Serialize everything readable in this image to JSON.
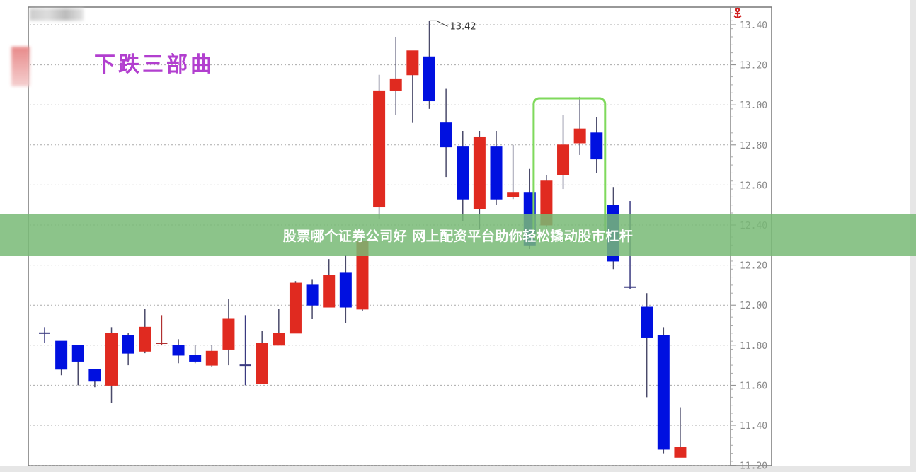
{
  "chart_data": {
    "type": "candlestick",
    "title": "下跌三部曲",
    "ylim": [
      11.21,
      13.48
    ],
    "yticks": [
      "11.20",
      "11.40",
      "11.60",
      "11.80",
      "12.00",
      "12.20",
      "12.40",
      "12.60",
      "12.80",
      "13.00",
      "13.20",
      "13.40"
    ],
    "grid": true,
    "annotation": {
      "label": "13.42",
      "value": 13.42,
      "candle_index": 23
    },
    "highlight": {
      "from_index": 30,
      "to_index": 33,
      "color": "#7fd95c"
    },
    "colors": {
      "up": "#e02a20",
      "down": "#0010e0",
      "doji": "#3a3a80"
    },
    "candles": [
      {
        "o": 11.86,
        "h": 11.89,
        "l": 11.81,
        "c": 11.86,
        "dir": "down"
      },
      {
        "o": 11.82,
        "h": 11.82,
        "l": 11.65,
        "c": 11.68,
        "dir": "down"
      },
      {
        "o": 11.8,
        "h": 11.8,
        "l": 11.6,
        "c": 11.72,
        "dir": "down"
      },
      {
        "o": 11.68,
        "h": 11.68,
        "l": 11.59,
        "c": 11.62,
        "dir": "down"
      },
      {
        "o": 11.6,
        "h": 11.89,
        "l": 11.51,
        "c": 11.86,
        "dir": "up"
      },
      {
        "o": 11.85,
        "h": 11.86,
        "l": 11.7,
        "c": 11.76,
        "dir": "down"
      },
      {
        "o": 11.77,
        "h": 11.98,
        "l": 11.76,
        "c": 11.89,
        "dir": "up"
      },
      {
        "o": 11.81,
        "h": 11.95,
        "l": 11.8,
        "c": 11.81,
        "dir": "up"
      },
      {
        "o": 11.8,
        "h": 11.83,
        "l": 11.71,
        "c": 11.75,
        "dir": "down"
      },
      {
        "o": 11.75,
        "h": 11.8,
        "l": 11.71,
        "c": 11.72,
        "dir": "down"
      },
      {
        "o": 11.7,
        "h": 11.8,
        "l": 11.69,
        "c": 11.77,
        "dir": "up"
      },
      {
        "o": 11.78,
        "h": 12.03,
        "l": 11.7,
        "c": 11.93,
        "dir": "up"
      },
      {
        "o": 11.7,
        "h": 11.95,
        "l": 11.6,
        "c": 11.7,
        "dir": "down"
      },
      {
        "o": 11.61,
        "h": 11.87,
        "l": 11.61,
        "c": 11.81,
        "dir": "up"
      },
      {
        "o": 11.8,
        "h": 11.98,
        "l": 11.8,
        "c": 11.86,
        "dir": "up"
      },
      {
        "o": 11.86,
        "h": 12.12,
        "l": 11.86,
        "c": 12.11,
        "dir": "up"
      },
      {
        "o": 12.1,
        "h": 12.13,
        "l": 11.93,
        "c": 12.0,
        "dir": "down"
      },
      {
        "o": 11.99,
        "h": 12.23,
        "l": 11.99,
        "c": 12.15,
        "dir": "up"
      },
      {
        "o": 12.16,
        "h": 12.25,
        "l": 11.91,
        "c": 11.99,
        "dir": "down"
      },
      {
        "o": 11.98,
        "h": 12.34,
        "l": 11.97,
        "c": 12.32,
        "dir": "up"
      },
      {
        "o": 12.49,
        "h": 13.15,
        "l": 12.43,
        "c": 13.07,
        "dir": "up"
      },
      {
        "o": 13.07,
        "h": 13.34,
        "l": 12.95,
        "c": 13.13,
        "dir": "up"
      },
      {
        "o": 13.15,
        "h": 13.27,
        "l": 12.91,
        "c": 13.27,
        "dir": "up"
      },
      {
        "o": 13.24,
        "h": 13.42,
        "l": 12.98,
        "c": 13.02,
        "dir": "down"
      },
      {
        "o": 12.91,
        "h": 13.08,
        "l": 12.64,
        "c": 12.79,
        "dir": "down"
      },
      {
        "o": 12.79,
        "h": 12.87,
        "l": 12.42,
        "c": 12.53,
        "dir": "down"
      },
      {
        "o": 12.48,
        "h": 12.87,
        "l": 12.38,
        "c": 12.84,
        "dir": "up"
      },
      {
        "o": 12.79,
        "h": 12.87,
        "l": 12.5,
        "c": 12.53,
        "dir": "down"
      },
      {
        "o": 12.54,
        "h": 12.8,
        "l": 12.53,
        "c": 12.56,
        "dir": "up"
      },
      {
        "o": 12.56,
        "h": 12.68,
        "l": 12.28,
        "c": 12.3,
        "dir": "down"
      },
      {
        "o": 12.4,
        "h": 12.65,
        "l": 12.39,
        "c": 12.62,
        "dir": "up"
      },
      {
        "o": 12.65,
        "h": 12.95,
        "l": 12.58,
        "c": 12.8,
        "dir": "up"
      },
      {
        "o": 12.81,
        "h": 13.04,
        "l": 12.75,
        "c": 12.88,
        "dir": "up"
      },
      {
        "o": 12.86,
        "h": 12.94,
        "l": 12.66,
        "c": 12.73,
        "dir": "down"
      },
      {
        "o": 12.5,
        "h": 12.59,
        "l": 12.18,
        "c": 12.22,
        "dir": "down"
      },
      {
        "o": 12.09,
        "h": 12.52,
        "l": 12.08,
        "c": 12.09,
        "dir": "down"
      },
      {
        "o": 11.99,
        "h": 12.06,
        "l": 11.54,
        "c": 11.84,
        "dir": "down"
      },
      {
        "o": 11.85,
        "h": 11.89,
        "l": 11.26,
        "c": 11.28,
        "dir": "down"
      },
      {
        "o": 11.24,
        "h": 11.49,
        "l": 11.24,
        "c": 11.29,
        "dir": "up"
      }
    ]
  },
  "banner": {
    "text": "股票哪个证券公司好 网上配资平台助你轻松撬动股市杠杆"
  },
  "icons": {
    "anchor": "anchor-icon"
  }
}
